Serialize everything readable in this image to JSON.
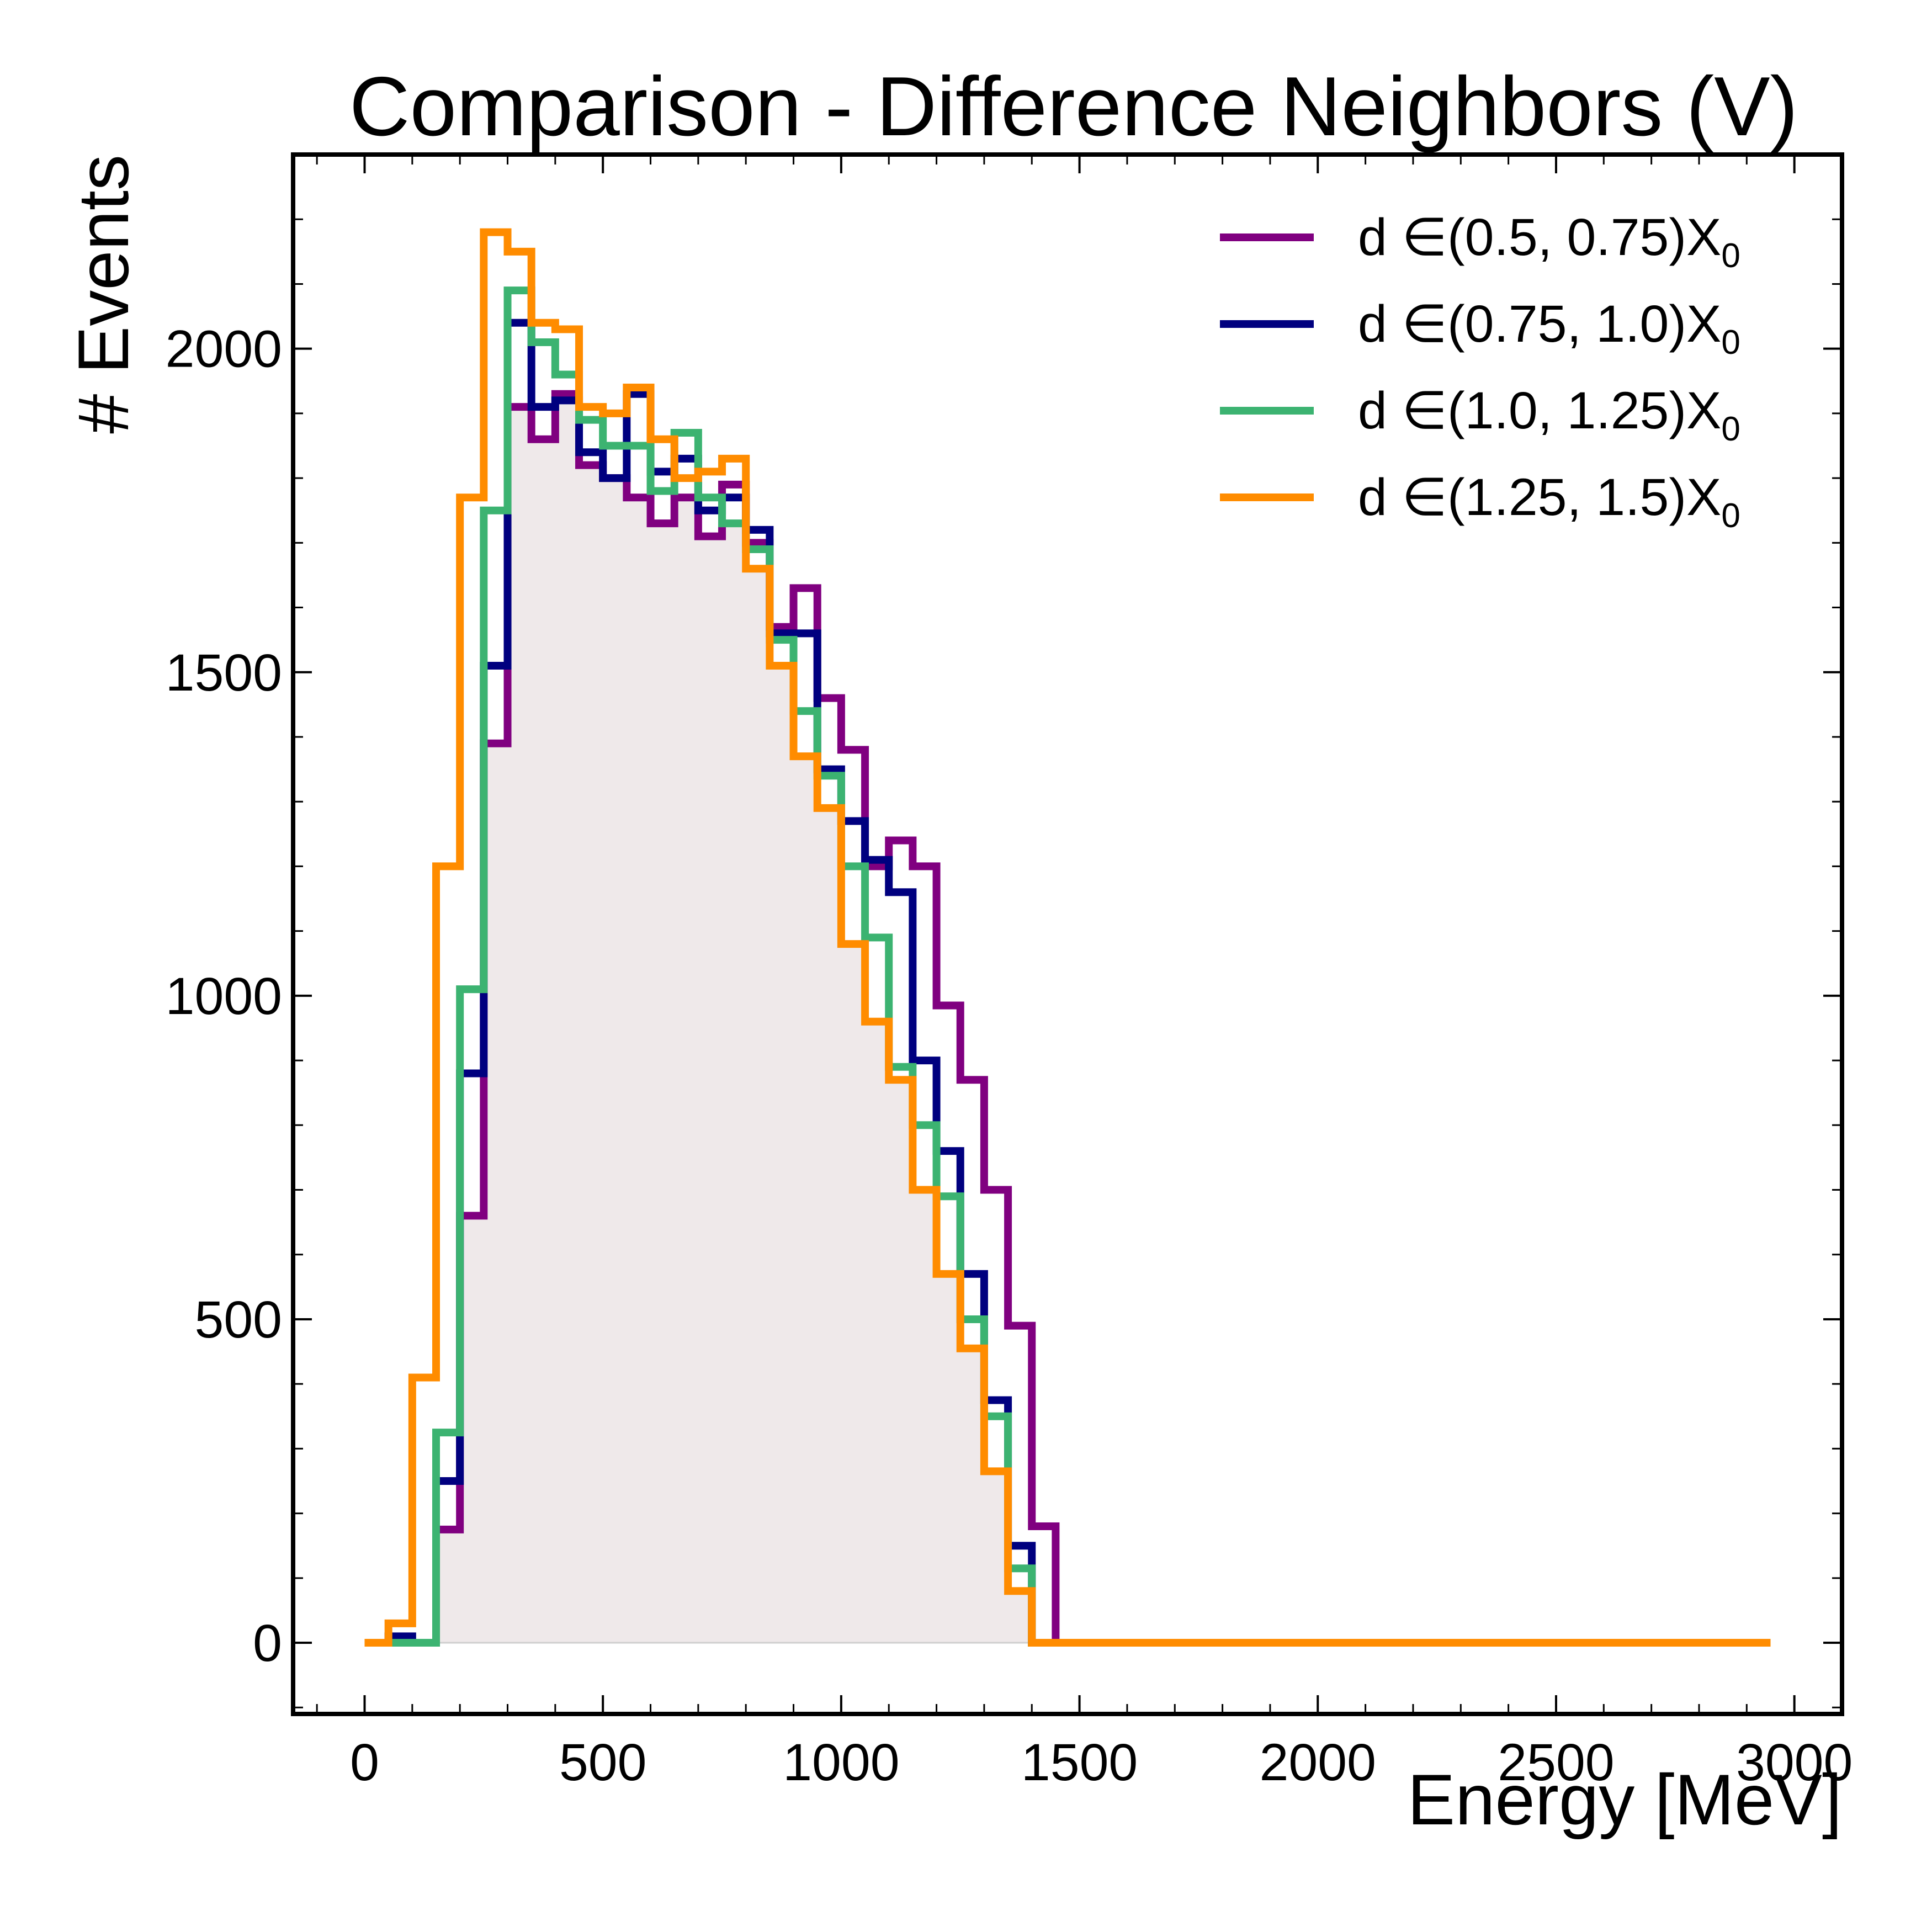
{
  "chart_data": {
    "type": "step",
    "title": "Comparison - Difference Neighbors (V)",
    "xlabel": "Energy [MeV]",
    "ylabel": "# Events",
    "xlim": [
      -150,
      3100
    ],
    "ylim": [
      -110,
      2300
    ],
    "x_ticks": [
      0,
      500,
      1000,
      1500,
      2000,
      2500,
      3000
    ],
    "y_ticks": [
      0,
      500,
      1000,
      1500,
      2000
    ],
    "bin_width": 50,
    "bin_start": 0,
    "legend_position": "top-right",
    "fill_color": "#efe9ea",
    "series": [
      {
        "name": "d ∈(0.5, 0.75)X",
        "name_subscript": "0",
        "color": "#800080",
        "values": [
          0,
          0,
          0,
          175,
          660,
          1390,
          1910,
          1860,
          1930,
          1820,
          1800,
          1770,
          1730,
          1770,
          1710,
          1790,
          1700,
          1570,
          1630,
          1460,
          1380,
          1200,
          1240,
          1200,
          985,
          870,
          700,
          490,
          180,
          0,
          0,
          0,
          0,
          0,
          0,
          0,
          0,
          0,
          0,
          0,
          0,
          0,
          0,
          0,
          0,
          0,
          0,
          0,
          0,
          0,
          0,
          0,
          0,
          0,
          0,
          0,
          0,
          0,
          0
        ]
      },
      {
        "name": "d ∈(0.75, 1.0)X",
        "name_subscript": "0",
        "color": "#00007f",
        "values": [
          0,
          10,
          0,
          250,
          880,
          1510,
          2040,
          1910,
          1920,
          1840,
          1800,
          1930,
          1810,
          1830,
          1750,
          1770,
          1720,
          1560,
          1560,
          1350,
          1270,
          1210,
          1160,
          900,
          760,
          570,
          375,
          150,
          0,
          0,
          0,
          0,
          0,
          0,
          0,
          0,
          0,
          0,
          0,
          0,
          0,
          0,
          0,
          0,
          0,
          0,
          0,
          0,
          0,
          0,
          0,
          0,
          0,
          0,
          0,
          0,
          0,
          0,
          0
        ]
      },
      {
        "name": "d ∈(1.0, 1.25)X",
        "name_subscript": "0",
        "color": "#3cb371",
        "values": [
          0,
          0,
          0,
          325,
          1010,
          1750,
          2090,
          2010,
          1960,
          1890,
          1850,
          1850,
          1780,
          1870,
          1770,
          1730,
          1690,
          1550,
          1440,
          1340,
          1200,
          1090,
          890,
          800,
          690,
          500,
          350,
          115,
          0,
          0,
          0,
          0,
          0,
          0,
          0,
          0,
          0,
          0,
          0,
          0,
          0,
          0,
          0,
          0,
          0,
          0,
          0,
          0,
          0,
          0,
          0,
          0,
          0,
          0,
          0,
          0,
          0,
          0,
          0
        ]
      },
      {
        "name": "d ∈(1.25, 1.5)X",
        "name_subscript": "0",
        "color": "#ff8c00",
        "values": [
          0,
          30,
          410,
          1200,
          1770,
          2180,
          2150,
          2040,
          2030,
          1910,
          1900,
          1940,
          1860,
          1800,
          1810,
          1830,
          1660,
          1510,
          1370,
          1290,
          1080,
          960,
          870,
          700,
          570,
          455,
          265,
          80,
          0,
          0,
          0,
          0,
          0,
          0,
          0,
          0,
          0,
          0,
          0,
          0,
          0,
          0,
          0,
          0,
          0,
          0,
          0,
          0,
          0,
          0,
          0,
          0,
          0,
          0,
          0,
          0,
          0,
          0,
          0
        ]
      }
    ]
  }
}
